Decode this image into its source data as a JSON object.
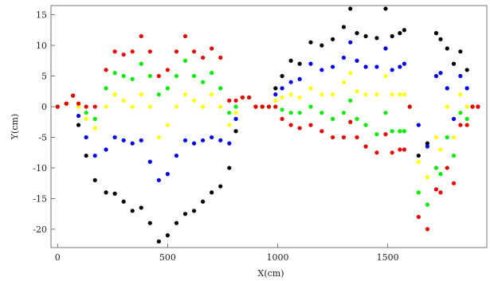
{
  "chart_data": {
    "type": "scatter",
    "title": "",
    "xlabel": "X(cm)",
    "ylabel": "Y(cm)",
    "xlim": [
      -30,
      1950
    ],
    "ylim": [
      -23,
      16.5
    ],
    "x_ticks": [
      0,
      500,
      1000,
      1500
    ],
    "y_ticks": [
      15,
      10,
      5,
      0,
      -5,
      -10,
      -15,
      -20
    ],
    "grid": false,
    "legend": "none",
    "series": [
      {
        "color": "#000000",
        "points": [
          [
            0,
            0
          ],
          [
            40,
            0.5
          ],
          [
            70,
            1.8
          ],
          [
            95,
            -3
          ],
          [
            130,
            -8
          ],
          [
            170,
            -12
          ],
          [
            220,
            -14
          ],
          [
            260,
            -14.2
          ],
          [
            300,
            -15.5
          ],
          [
            340,
            -17
          ],
          [
            380,
            -16.5
          ],
          [
            420,
            -19
          ],
          [
            460,
            -22
          ],
          [
            500,
            -21
          ],
          [
            540,
            -19
          ],
          [
            580,
            -17.5
          ],
          [
            620,
            -17
          ],
          [
            660,
            -15.5
          ],
          [
            700,
            -14
          ],
          [
            740,
            -13
          ],
          [
            780,
            -10
          ],
          [
            810,
            -4
          ],
          [
            840,
            1.5
          ],
          [
            870,
            1.5
          ],
          [
            900,
            0
          ],
          [
            930,
            0
          ],
          [
            960,
            0
          ],
          [
            990,
            3
          ],
          [
            1020,
            5
          ],
          [
            1060,
            7.5
          ],
          [
            1100,
            7
          ],
          [
            1150,
            10.5
          ],
          [
            1200,
            10
          ],
          [
            1250,
            11
          ],
          [
            1300,
            13
          ],
          [
            1330,
            16
          ],
          [
            1360,
            12
          ],
          [
            1400,
            11.5
          ],
          [
            1450,
            11.2
          ],
          [
            1490,
            16
          ],
          [
            1520,
            11.5
          ],
          [
            1555,
            12
          ],
          [
            1575,
            12.5
          ],
          [
            1600,
            0
          ],
          [
            1640,
            -8
          ],
          [
            1680,
            -6
          ],
          [
            1720,
            12
          ],
          [
            1740,
            11
          ],
          [
            1770,
            9.5
          ],
          [
            1800,
            7
          ],
          [
            1830,
            9
          ],
          [
            1860,
            6
          ],
          [
            1885,
            0
          ],
          [
            1910,
            0
          ]
        ]
      },
      {
        "color": "#0000ee",
        "points": [
          [
            0,
            0
          ],
          [
            40,
            0.5
          ],
          [
            70,
            1.8
          ],
          [
            95,
            -1.5
          ],
          [
            130,
            -5
          ],
          [
            170,
            -8
          ],
          [
            220,
            -7
          ],
          [
            260,
            -5
          ],
          [
            300,
            -5.5
          ],
          [
            340,
            -6
          ],
          [
            380,
            -5.5
          ],
          [
            420,
            -9
          ],
          [
            460,
            -12
          ],
          [
            500,
            -11
          ],
          [
            540,
            -8
          ],
          [
            580,
            -5.5
          ],
          [
            620,
            -6
          ],
          [
            660,
            -5.5
          ],
          [
            700,
            -5
          ],
          [
            740,
            -5.5
          ],
          [
            780,
            -6
          ],
          [
            810,
            -2
          ],
          [
            840,
            1.5
          ],
          [
            870,
            1.5
          ],
          [
            900,
            0
          ],
          [
            930,
            0
          ],
          [
            960,
            0
          ],
          [
            990,
            2
          ],
          [
            1020,
            3
          ],
          [
            1060,
            4
          ],
          [
            1100,
            4.5
          ],
          [
            1150,
            7
          ],
          [
            1200,
            6
          ],
          [
            1250,
            6.5
          ],
          [
            1300,
            8
          ],
          [
            1330,
            10.5
          ],
          [
            1360,
            7.5
          ],
          [
            1400,
            6.5
          ],
          [
            1450,
            6.5
          ],
          [
            1490,
            9.5
          ],
          [
            1520,
            6
          ],
          [
            1555,
            6.5
          ],
          [
            1575,
            7
          ],
          [
            1600,
            0
          ],
          [
            1640,
            -3
          ],
          [
            1680,
            -6.5
          ],
          [
            1720,
            5
          ],
          [
            1740,
            5.5
          ],
          [
            1770,
            3
          ],
          [
            1800,
            -2
          ],
          [
            1830,
            5
          ],
          [
            1860,
            3
          ],
          [
            1885,
            0
          ],
          [
            1910,
            0
          ]
        ]
      },
      {
        "color": "#ffff00",
        "points": [
          [
            0,
            0
          ],
          [
            40,
            0.5
          ],
          [
            70,
            1.8
          ],
          [
            95,
            0
          ],
          [
            130,
            -2
          ],
          [
            170,
            -3.5
          ],
          [
            220,
            0
          ],
          [
            260,
            2
          ],
          [
            300,
            1
          ],
          [
            340,
            0
          ],
          [
            380,
            2
          ],
          [
            420,
            0
          ],
          [
            460,
            -5
          ],
          [
            500,
            -3
          ],
          [
            540,
            0
          ],
          [
            580,
            2
          ],
          [
            620,
            1
          ],
          [
            660,
            0
          ],
          [
            700,
            2
          ],
          [
            740,
            0
          ],
          [
            780,
            -3
          ],
          [
            810,
            -1
          ],
          [
            840,
            1.5
          ],
          [
            870,
            1.5
          ],
          [
            900,
            0
          ],
          [
            930,
            0
          ],
          [
            960,
            0
          ],
          [
            990,
            1
          ],
          [
            1020,
            1.5
          ],
          [
            1060,
            2
          ],
          [
            1100,
            1.5
          ],
          [
            1150,
            3
          ],
          [
            1200,
            2
          ],
          [
            1250,
            2
          ],
          [
            1300,
            4
          ],
          [
            1330,
            5.5
          ],
          [
            1360,
            2.5
          ],
          [
            1400,
            2
          ],
          [
            1450,
            2
          ],
          [
            1490,
            5
          ],
          [
            1520,
            2
          ],
          [
            1555,
            2
          ],
          [
            1575,
            2
          ],
          [
            1600,
            0
          ],
          [
            1640,
            -9
          ],
          [
            1680,
            -11.5
          ],
          [
            1720,
            -5
          ],
          [
            1740,
            -7
          ],
          [
            1770,
            0
          ],
          [
            1800,
            -5
          ],
          [
            1830,
            2
          ],
          [
            1860,
            0
          ],
          [
            1885,
            0
          ],
          [
            1910,
            0
          ]
        ]
      },
      {
        "color": "#00ee00",
        "points": [
          [
            0,
            0
          ],
          [
            40,
            0.5
          ],
          [
            70,
            1.8
          ],
          [
            95,
            0.5
          ],
          [
            130,
            -1
          ],
          [
            170,
            -2
          ],
          [
            220,
            3
          ],
          [
            260,
            5.5
          ],
          [
            300,
            5
          ],
          [
            340,
            4.5
          ],
          [
            380,
            7
          ],
          [
            420,
            5
          ],
          [
            460,
            2
          ],
          [
            500,
            3
          ],
          [
            540,
            5
          ],
          [
            580,
            7.5
          ],
          [
            620,
            5
          ],
          [
            660,
            4
          ],
          [
            700,
            5.5
          ],
          [
            740,
            3
          ],
          [
            780,
            -1
          ],
          [
            810,
            0
          ],
          [
            840,
            1.5
          ],
          [
            870,
            1.5
          ],
          [
            900,
            0
          ],
          [
            930,
            0
          ],
          [
            960,
            0
          ],
          [
            990,
            0
          ],
          [
            1020,
            -0.5
          ],
          [
            1060,
            -1
          ],
          [
            1100,
            -1
          ],
          [
            1150,
            0
          ],
          [
            1200,
            -1
          ],
          [
            1250,
            -2
          ],
          [
            1300,
            -1
          ],
          [
            1330,
            1
          ],
          [
            1360,
            -2
          ],
          [
            1400,
            -3
          ],
          [
            1450,
            -4.5
          ],
          [
            1490,
            -1
          ],
          [
            1520,
            -4
          ],
          [
            1555,
            -4
          ],
          [
            1575,
            -4
          ],
          [
            1600,
            0
          ],
          [
            1640,
            -14
          ],
          [
            1680,
            -16
          ],
          [
            1720,
            -10
          ],
          [
            1740,
            -11
          ],
          [
            1770,
            -5
          ],
          [
            1800,
            -8
          ],
          [
            1830,
            -1
          ],
          [
            1860,
            -2
          ],
          [
            1885,
            0
          ],
          [
            1910,
            0
          ]
        ]
      },
      {
        "color": "#ee0000",
        "points": [
          [
            0,
            0
          ],
          [
            40,
            0.5
          ],
          [
            70,
            1.8
          ],
          [
            95,
            0.5
          ],
          [
            130,
            0
          ],
          [
            170,
            0
          ],
          [
            220,
            6
          ],
          [
            260,
            9
          ],
          [
            300,
            8.5
          ],
          [
            340,
            9
          ],
          [
            380,
            11.5
          ],
          [
            420,
            9
          ],
          [
            460,
            5
          ],
          [
            500,
            6
          ],
          [
            540,
            9
          ],
          [
            580,
            11.5
          ],
          [
            620,
            9
          ],
          [
            660,
            8
          ],
          [
            700,
            9.5
          ],
          [
            740,
            8
          ],
          [
            780,
            1
          ],
          [
            810,
            1
          ],
          [
            840,
            1.5
          ],
          [
            870,
            1.5
          ],
          [
            900,
            0
          ],
          [
            930,
            0
          ],
          [
            960,
            0
          ],
          [
            990,
            0
          ],
          [
            1020,
            -2
          ],
          [
            1060,
            -3
          ],
          [
            1100,
            -3.5
          ],
          [
            1150,
            -3
          ],
          [
            1200,
            -4
          ],
          [
            1250,
            -5
          ],
          [
            1300,
            -5
          ],
          [
            1330,
            -2.5
          ],
          [
            1360,
            -5
          ],
          [
            1400,
            -6.5
          ],
          [
            1450,
            -7.5
          ],
          [
            1490,
            -4.5
          ],
          [
            1520,
            -7.5
          ],
          [
            1555,
            -7
          ],
          [
            1575,
            -7
          ],
          [
            1600,
            0
          ],
          [
            1640,
            -18
          ],
          [
            1680,
            -20
          ],
          [
            1720,
            -13.5
          ],
          [
            1740,
            -14
          ],
          [
            1770,
            -10
          ],
          [
            1800,
            -12.5
          ],
          [
            1830,
            -3
          ],
          [
            1860,
            -3
          ],
          [
            1885,
            0
          ],
          [
            1910,
            0
          ]
        ]
      }
    ]
  }
}
